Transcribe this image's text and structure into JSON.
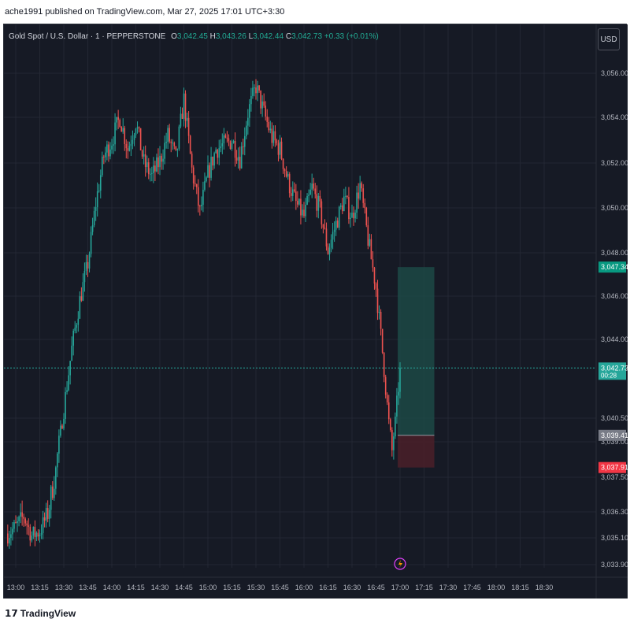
{
  "header": {
    "published_text": "ache1991 published on TradingView.com, Mar 27, 2025 17:01 UTC+3:30"
  },
  "legend": {
    "symbol": "Gold Spot / U.S. Dollar · 1 · PEPPERSTONE",
    "o_label": "O",
    "o_value": "3,042.45",
    "h_label": "H",
    "h_value": "3,043.26",
    "l_label": "L",
    "l_value": "3,042.44",
    "c_label": "C",
    "c_value": "3,042.73",
    "change": "+0.33 (+0.01%)"
  },
  "toolbar": {
    "currency": "USD"
  },
  "footer": {
    "logo_mark": "𝟭𝟳",
    "logo_text": "TradingView"
  },
  "colors": {
    "background": "#161a25",
    "grid": "#232733",
    "up": "#26a69a",
    "down": "#ef5350",
    "text": "#b2b5be",
    "target_zone": "#1e4f4a",
    "stop_zone": "#4a2029",
    "price_line": "#26a69a"
  },
  "chart_data": {
    "type": "candlestick",
    "y_ticks": [
      {
        "value": 3056.0,
        "label": "3,056.00"
      },
      {
        "value": 3054.0,
        "label": "3,054.00"
      },
      {
        "value": 3052.0,
        "label": "3,052.00"
      },
      {
        "value": 3050.0,
        "label": "3,050.00"
      },
      {
        "value": 3048.0,
        "label": "3,048.00"
      },
      {
        "value": 3046.0,
        "label": "3,046.00"
      },
      {
        "value": 3044.0,
        "label": "3,044.00"
      },
      {
        "value": 3040.5,
        "label": "3,040.50"
      },
      {
        "value": 3039.0,
        "label": "3,039.00"
      },
      {
        "value": 3037.5,
        "label": "3,037.50"
      },
      {
        "value": 3036.3,
        "label": "3,036.30"
      },
      {
        "value": 3035.1,
        "label": "3,035.10"
      },
      {
        "value": 3033.9,
        "label": "3,033.90"
      }
    ],
    "x_ticks": [
      "13:00",
      "13:15",
      "13:30",
      "13:45",
      "14:00",
      "14:15",
      "14:30",
      "14:45",
      "15:00",
      "15:15",
      "15:30",
      "15:45",
      "16:00",
      "16:15",
      "16:30",
      "16:45",
      "17:00",
      "17:15",
      "17:30",
      "17:45",
      "18:00",
      "18:15",
      "18:30"
    ],
    "price_labels": {
      "target": {
        "value": 3047.34,
        "label": "3,047.34"
      },
      "current": {
        "value": 3042.73,
        "label": "3,042.73",
        "countdown": "00:28"
      },
      "entry": {
        "value": 3039.41,
        "label": "3,039.41"
      },
      "stop": {
        "value": 3037.91,
        "label": "3,037.91"
      }
    },
    "position": {
      "start_time": "17:00",
      "end_time": "17:15",
      "entry": 3039.41,
      "target": 3047.34,
      "stop": 3037.91
    },
    "anchors": [
      [
        "12:55",
        3035.3
      ],
      [
        "13:00",
        3035.6
      ],
      [
        "13:05",
        3036.1
      ],
      [
        "13:10",
        3035.2
      ],
      [
        "13:15",
        3035.4
      ],
      [
        "13:20",
        3036.2
      ],
      [
        "13:25",
        3037.8
      ],
      [
        "13:30",
        3040.9
      ],
      [
        "13:35",
        3043.6
      ],
      [
        "13:40",
        3045.8
      ],
      [
        "13:45",
        3047.5
      ],
      [
        "13:50",
        3050.2
      ],
      [
        "13:55",
        3052.3
      ],
      [
        "14:00",
        3053.0
      ],
      [
        "14:05",
        3054.0
      ],
      [
        "14:10",
        3052.6
      ],
      [
        "14:15",
        3053.8
      ],
      [
        "14:20",
        3052.0
      ],
      [
        "14:25",
        3051.4
      ],
      [
        "14:30",
        3052.1
      ],
      [
        "14:35",
        3053.2
      ],
      [
        "14:40",
        3052.2
      ],
      [
        "14:45",
        3054.8
      ],
      [
        "14:50",
        3051.7
      ],
      [
        "14:55",
        3049.8
      ],
      [
        "15:00",
        3051.5
      ],
      [
        "15:05",
        3052.6
      ],
      [
        "15:10",
        3052.8
      ],
      [
        "15:15",
        3053.0
      ],
      [
        "15:20",
        3052.2
      ],
      [
        "15:25",
        3054.2
      ],
      [
        "15:30",
        3055.4
      ],
      [
        "15:35",
        3054.2
      ],
      [
        "15:40",
        3053.1
      ],
      [
        "15:45",
        3052.6
      ],
      [
        "15:50",
        3051.2
      ],
      [
        "15:55",
        3050.2
      ],
      [
        "16:00",
        3049.6
      ],
      [
        "16:05",
        3050.9
      ],
      [
        "16:10",
        3049.9
      ],
      [
        "16:15",
        3048.1
      ],
      [
        "16:20",
        3049.3
      ],
      [
        "16:25",
        3050.4
      ],
      [
        "16:30",
        3049.6
      ],
      [
        "16:35",
        3051.0
      ],
      [
        "16:40",
        3048.6
      ],
      [
        "16:45",
        3046.4
      ],
      [
        "16:50",
        3042.7
      ],
      [
        "16:55",
        3038.6
      ],
      [
        "17:00",
        3042.73
      ]
    ],
    "high": 3056.1,
    "low": 3035.2
  }
}
